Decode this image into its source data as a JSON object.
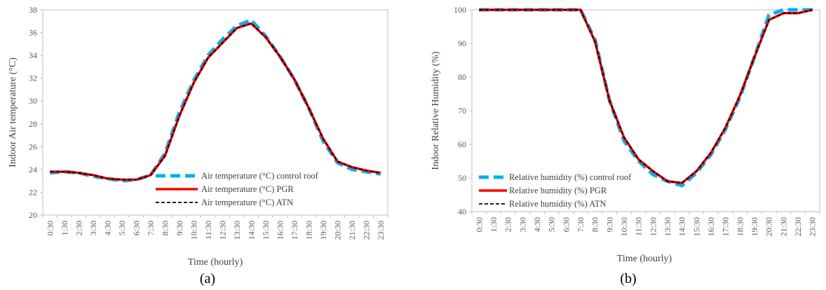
{
  "chart_data": [
    {
      "type": "line",
      "panel_label": "(a)",
      "xlabel": "Time (hourly)",
      "ylabel": "Indoor Air temperature (°C)",
      "ylim": [
        20,
        38
      ],
      "yticks": [
        20,
        22,
        24,
        26,
        28,
        30,
        32,
        34,
        36,
        38
      ],
      "grid": false,
      "legend_position": "bottom-right",
      "categories": [
        "0:30",
        "1:30",
        "2:30",
        "3:30",
        "4:30",
        "5:30",
        "6:30",
        "7:30",
        "8:30",
        "9:30",
        "10:30",
        "11:30",
        "12:30",
        "13:30",
        "14:30",
        "15:30",
        "16:30",
        "17:30",
        "18:30",
        "19:30",
        "20:30",
        "21:30",
        "22:30",
        "23:30"
      ],
      "series": [
        {
          "name": "Air temperature (°C) control roof",
          "color": "#00b0f0",
          "dash": "dashed-thick",
          "values": [
            23.7,
            23.8,
            23.7,
            23.4,
            23.2,
            23.0,
            23.1,
            23.5,
            25.4,
            29.0,
            31.8,
            34.0,
            35.4,
            36.6,
            37.1,
            35.7,
            33.9,
            31.9,
            29.4,
            26.5,
            24.6,
            24.0,
            23.8,
            23.6
          ]
        },
        {
          "name": "Air temperature (°C) PGR",
          "color": "#ff0000",
          "dash": "solid",
          "values": [
            23.8,
            23.8,
            23.7,
            23.5,
            23.2,
            23.1,
            23.1,
            23.5,
            25.2,
            28.7,
            31.6,
            33.8,
            35.1,
            36.4,
            36.8,
            35.6,
            33.9,
            31.9,
            29.4,
            26.7,
            24.7,
            24.2,
            23.9,
            23.7
          ]
        },
        {
          "name": "Air temperature (°C) ATN",
          "color": "#000000",
          "dash": "dashed-thin",
          "values": [
            23.8,
            23.8,
            23.7,
            23.5,
            23.2,
            23.1,
            23.1,
            23.5,
            25.2,
            28.7,
            31.6,
            33.8,
            35.1,
            36.4,
            36.8,
            35.6,
            33.9,
            31.9,
            29.4,
            26.7,
            24.7,
            24.2,
            23.9,
            23.7
          ]
        }
      ]
    },
    {
      "type": "line",
      "panel_label": "(b)",
      "xlabel": "Time (hourly)",
      "ylabel": "Indoor Relative Humidity (%)",
      "ylim": [
        40,
        100
      ],
      "yticks": [
        40,
        50,
        60,
        70,
        80,
        90,
        100
      ],
      "grid": false,
      "legend_position": "bottom-left",
      "categories": [
        "0:30",
        "1:30",
        "2:30",
        "3:30",
        "4:30",
        "5:30",
        "6:30",
        "7:30",
        "8:30",
        "9:30",
        "10:30",
        "11:30",
        "12:30",
        "13:30",
        "14:30",
        "15:30",
        "16:30",
        "17:30",
        "18:30",
        "19:30",
        "20:30",
        "21:30",
        "22:30",
        "23:30"
      ],
      "series": [
        {
          "name": "Relative humidity (%) control roof",
          "color": "#00b0f0",
          "dash": "dashed-thick",
          "values": [
            100,
            100,
            100,
            100,
            100,
            100,
            100,
            100,
            91,
            73,
            61,
            55,
            51,
            49,
            47.7,
            51.5,
            57,
            64.5,
            74,
            86,
            98.5,
            100,
            100,
            100
          ]
        },
        {
          "name": "Relative humidity (%) PGR",
          "color": "#ff0000",
          "dash": "solid",
          "values": [
            100,
            100,
            100,
            100,
            100,
            100,
            100,
            100,
            90.5,
            73,
            62,
            55.5,
            52,
            49,
            48.5,
            52,
            57.5,
            65,
            74.5,
            86,
            97,
            99,
            99,
            100
          ]
        },
        {
          "name": "Relative humidity (%) ATN",
          "color": "#000000",
          "dash": "dashed-thin",
          "values": [
            100,
            100,
            100,
            100,
            100,
            100,
            100,
            100,
            90.5,
            73,
            62,
            55.5,
            52,
            49,
            48.5,
            52,
            57.5,
            65,
            74.5,
            86,
            97,
            99,
            99,
            100
          ]
        }
      ]
    }
  ]
}
